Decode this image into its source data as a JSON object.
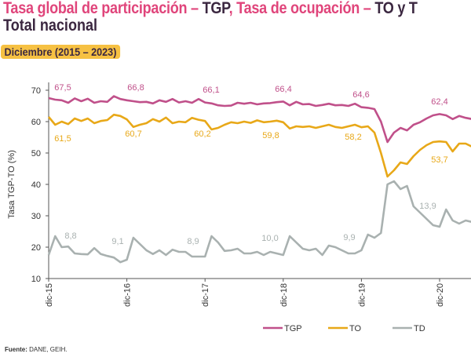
{
  "header": {
    "title_parts": [
      "Tasa global de participación – ",
      "TGP",
      ", Tasa de ocupación – ",
      "TO y T"
    ],
    "title_line2": "Total nacional",
    "badge": "Diciembre (2015 – 2023)"
  },
  "source": {
    "label": "Fuente:",
    "text": " DANE, GEIH."
  },
  "chart_data": {
    "type": "line",
    "title": "Tasa global de participación – TGP, Tasa de ocupación – TO y T",
    "ylabel": "Tasa TGP-TO (%)",
    "xlabel": "",
    "ylim": [
      10,
      70
    ],
    "yticks": [
      "10",
      "20",
      "30",
      "40",
      "50",
      "60",
      "70"
    ],
    "xticks": [
      "dic-15",
      "dic-16",
      "dic-17",
      "dic-18",
      "dic-19",
      "dic-20"
    ],
    "x_frequency": "monthly, starting dic-15",
    "grid": false,
    "legend": "bottom-right",
    "series": [
      {
        "name": "TGP",
        "color": "#c0508a",
        "values": [
          67.5,
          67.0,
          66.8,
          66.0,
          67.4,
          66.5,
          67.3,
          66.0,
          66.5,
          66.3,
          68.1,
          67.2,
          66.8,
          66.5,
          66.2,
          66.3,
          65.8,
          66.8,
          66.3,
          67.2,
          66.1,
          66.5,
          66.0,
          67.2,
          66.1,
          65.8,
          65.2,
          65.0,
          65.1,
          66.0,
          65.7,
          66.0,
          65.5,
          65.8,
          65.9,
          66.2,
          66.4,
          65.2,
          66.3,
          65.5,
          65.6,
          65.0,
          65.3,
          65.7,
          65.2,
          65.3,
          65.0,
          65.7,
          64.6,
          64.4,
          64.0,
          60.0,
          53.5,
          56.5,
          58.0,
          57.2,
          59.0,
          59.8,
          61.0,
          62.0,
          62.4,
          62.0,
          60.8,
          61.8,
          61.2,
          60.8,
          61.0
        ],
        "labels": [
          "67,5",
          "66,8",
          "66,1",
          "66,4",
          "64,6",
          "62,4"
        ]
      },
      {
        "name": "TO",
        "color": "#e8a818",
        "values": [
          61.5,
          59.0,
          60.0,
          59.2,
          61.0,
          60.2,
          61.0,
          59.5,
          60.2,
          60.5,
          62.2,
          61.8,
          60.7,
          58.3,
          59.0,
          59.5,
          60.8,
          60.0,
          61.3,
          59.5,
          60.0,
          59.8,
          61.2,
          60.6,
          60.2,
          57.5,
          58.0,
          59.0,
          59.8,
          59.5,
          60.0,
          59.6,
          60.4,
          59.8,
          60.0,
          60.3,
          59.8,
          57.8,
          58.5,
          58.3,
          58.5,
          58.0,
          58.5,
          59.0,
          58.3,
          58.0,
          58.5,
          59.0,
          58.2,
          58.5,
          56.5,
          50.0,
          42.5,
          44.5,
          47.0,
          46.5,
          49.0,
          51.0,
          52.5,
          53.5,
          53.7,
          53.5,
          50.5,
          53.0,
          53.0,
          52.0,
          52.3
        ],
        "labels": [
          "61,5",
          "60,7",
          "60,2",
          "59,8",
          "58,2",
          "53,7"
        ]
      },
      {
        "name": "TD",
        "color": "#a9b1b0",
        "values": [
          17.5,
          23.5,
          20.0,
          20.2,
          18.0,
          17.8,
          17.7,
          19.7,
          17.8,
          17.2,
          16.7,
          15.2,
          16.0,
          23.0,
          21.0,
          19.0,
          17.8,
          19.0,
          17.5,
          19.2,
          18.5,
          18.5,
          17.0,
          17.0,
          17.0,
          23.5,
          21.5,
          18.8,
          19.0,
          19.5,
          18.0,
          18.0,
          18.5,
          17.5,
          18.5,
          18.0,
          17.5,
          23.5,
          21.5,
          19.5,
          19.0,
          19.5,
          17.5,
          20.5,
          20.0,
          19.0,
          18.0,
          18.0,
          19.0,
          24.0,
          23.0,
          24.5,
          40.0,
          41.0,
          38.5,
          39.5,
          33.0,
          31.0,
          29.0,
          27.0,
          26.5,
          32.0,
          28.5,
          27.5,
          28.5,
          28.0,
          28.5
        ],
        "labels": [
          "8,8",
          "9,1",
          "8,9",
          "10,0",
          "9,9",
          "13,9"
        ]
      }
    ]
  }
}
